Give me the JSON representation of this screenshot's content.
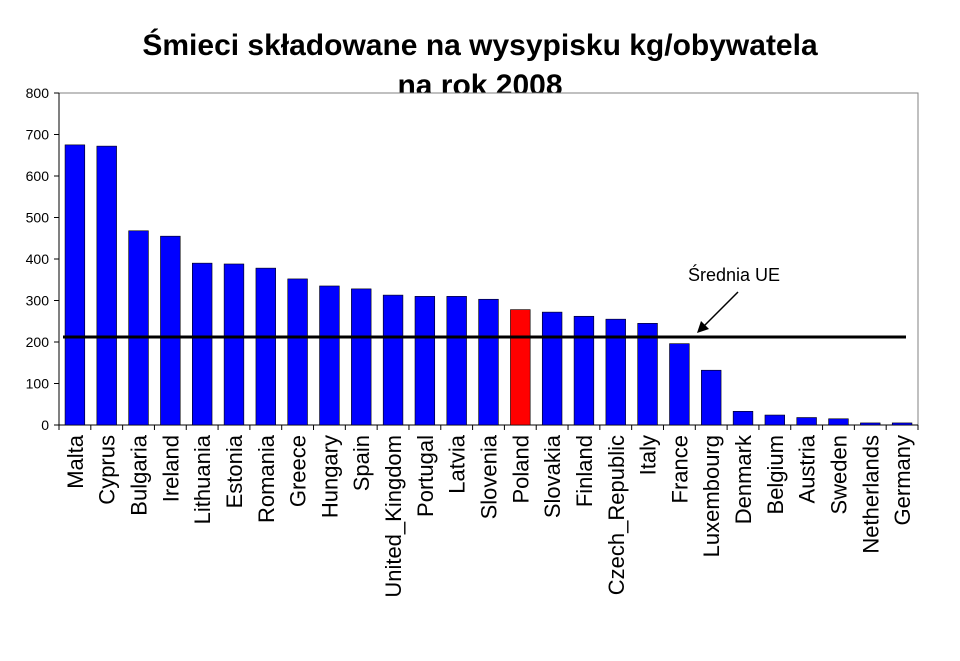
{
  "chart_data": {
    "type": "bar",
    "title_lines": [
      "Śmieci składowane na wysypisku kg/obywatela",
      "na rok 2008"
    ],
    "xlabel": "",
    "ylabel": "",
    "ylim": [
      0,
      800
    ],
    "yticks": [
      0,
      100,
      200,
      300,
      400,
      500,
      600,
      700,
      800
    ],
    "categories": [
      "Malta",
      "Cyprus",
      "Bulgaria",
      "Ireland",
      "Lithuania",
      "Estonia",
      "Romania",
      "Greece",
      "Hungary",
      "Spain",
      "United_Kingdom",
      "Portugal",
      "Latvia",
      "Slovenia",
      "Poland",
      "Slovakia",
      "Finland",
      "Czech_Republic",
      "Italy",
      "France",
      "Luxembourg",
      "Denmark",
      "Belgium",
      "Austria",
      "Sweden",
      "Netherlands",
      "Germany"
    ],
    "values": [
      675,
      672,
      468,
      455,
      390,
      388,
      378,
      352,
      335,
      328,
      313,
      310,
      310,
      303,
      278,
      272,
      262,
      255,
      245,
      196,
      132,
      33,
      24,
      18,
      15,
      5,
      5
    ],
    "bar_color": "#0000FF",
    "highlight_category": "Poland",
    "highlight_color": "#FF0000",
    "grid": false,
    "reference_line": {
      "label": "Średnia UE",
      "value": 212
    }
  }
}
